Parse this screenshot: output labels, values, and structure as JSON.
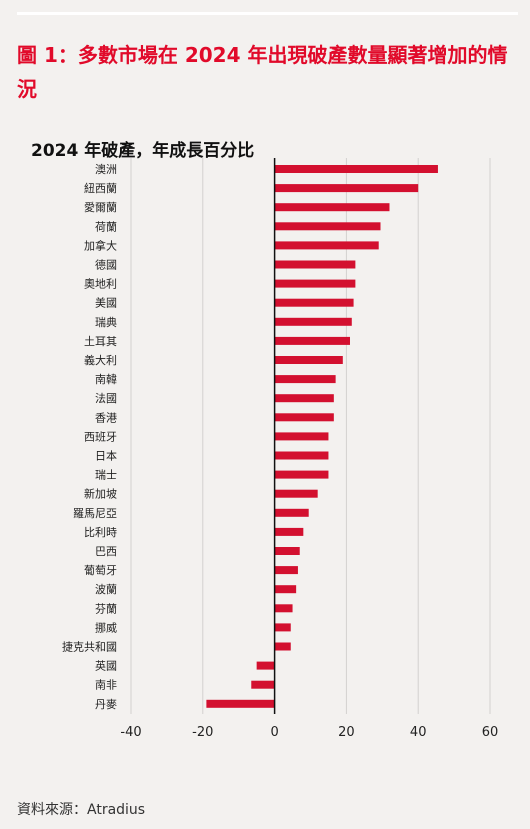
{
  "header": {
    "title": "圖 1：多數市場在 2024 年出現破產數量顯著增加的情況"
  },
  "footer": {
    "source": "資料來源：Atradius"
  },
  "colors": {
    "accent": "#e10a2a",
    "bar": "#d3102f",
    "background": "#f3f1ef"
  },
  "chart_data": {
    "type": "bar",
    "orientation": "horizontal",
    "title": "2024 年破產，年成長百分比",
    "categories": [
      "澳洲",
      "紐西蘭",
      "愛爾蘭",
      "荷蘭",
      "加拿大",
      "德國",
      "奧地利",
      "美國",
      "瑞典",
      "土耳其",
      "義大利",
      "南韓",
      "法國",
      "香港",
      "西班牙",
      "日本",
      "瑞士",
      "新加坡",
      "羅馬尼亞",
      "比利時",
      "巴西",
      "葡萄牙",
      "波蘭",
      "芬蘭",
      "挪威",
      "捷克共和國",
      "英國",
      "南非",
      "丹麥"
    ],
    "values": [
      45.5,
      40,
      32,
      29.5,
      29,
      22.5,
      22.5,
      22,
      21.5,
      21,
      19,
      17,
      16.5,
      16.5,
      15,
      15,
      15,
      12,
      9.5,
      8,
      7,
      6.5,
      6,
      5,
      4.5,
      4.5,
      -5,
      -6.5,
      -19
    ],
    "xlim": [
      -40,
      60
    ],
    "xticks": [
      -40,
      -20,
      0,
      20,
      40,
      60
    ],
    "xlabel": "",
    "ylabel": "",
    "grid": true,
    "legend": "none"
  }
}
